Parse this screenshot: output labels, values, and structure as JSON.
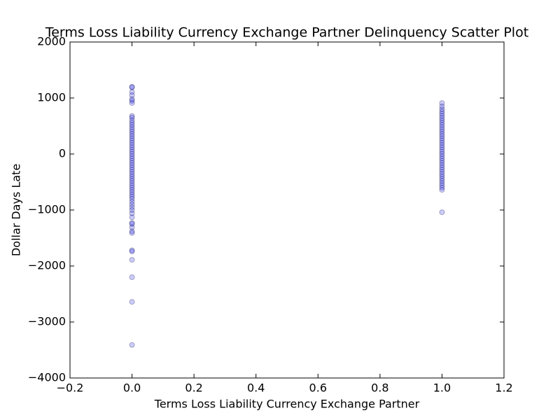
{
  "chart_data": {
    "type": "scatter",
    "title": "Terms Loss Liability Currency Exchange Partner Delinquency Scatter Plot",
    "x_label": "Terms Loss Liability Currency Exchange Partner",
    "y_label": "Dollar Days Late",
    "color": "#0000ff",
    "xlim": [
      -0.2,
      1.2
    ],
    "ylim": [
      -4000,
      2000
    ],
    "xticks": [
      {
        "value": -0.2,
        "label": "−0.2"
      },
      {
        "value": 0,
        "label": "0.0"
      },
      0.2,
      0.4,
      0.6,
      0.8,
      {
        "value": 1,
        "label": "1.0"
      },
      1.2
    ],
    "yticks": [
      {
        "value": -4000,
        "label": "−4000"
      },
      {
        "value": -3000,
        "label": "−3000"
      },
      {
        "value": -2000,
        "label": "−2000"
      },
      {
        "value": -1000,
        "label": "−1000"
      },
      0,
      1000,
      2000
    ],
    "grid": false,
    "x": [
      0,
      0,
      0,
      0,
      0,
      0,
      0,
      0,
      0,
      0,
      0,
      0,
      0,
      0,
      0,
      0,
      0,
      0,
      0,
      0,
      0,
      0,
      0,
      0,
      0,
      0,
      0,
      0,
      0,
      0,
      0,
      0,
      0,
      0,
      0,
      0,
      0,
      0,
      0,
      0,
      0,
      0,
      0,
      0,
      0,
      0,
      0,
      0,
      0,
      0,
      0,
      0,
      0,
      0,
      0,
      0,
      0,
      0,
      0,
      0,
      0,
      0,
      1,
      1,
      1,
      1,
      1,
      1,
      1,
      1,
      1,
      1,
      1,
      1,
      1,
      1,
      1,
      1,
      1,
      1,
      1,
      1,
      1,
      1,
      1,
      1,
      1,
      1,
      1,
      1,
      1,
      1,
      1,
      1,
      1,
      1,
      1,
      1,
      1,
      1,
      1,
      1
    ],
    "values": [
      1200,
      1190,
      1110,
      1050,
      980,
      950,
      910,
      680,
      650,
      600,
      560,
      520,
      480,
      440,
      400,
      360,
      320,
      280,
      240,
      200,
      160,
      120,
      80,
      40,
      0,
      -40,
      -80,
      -120,
      -160,
      -200,
      -240,
      -280,
      -320,
      -360,
      -400,
      -440,
      -480,
      -520,
      -560,
      -600,
      -640,
      -680,
      -720,
      -760,
      -800,
      -850,
      -900,
      -950,
      -1000,
      -1060,
      -1130,
      -1230,
      -1250,
      -1310,
      -1380,
      -1410,
      -1720,
      -1740,
      -1890,
      -2200,
      -2640,
      -3410,
      910,
      850,
      800,
      760,
      720,
      680,
      640,
      600,
      560,
      520,
      480,
      440,
      400,
      360,
      320,
      280,
      240,
      200,
      160,
      120,
      80,
      40,
      0,
      -40,
      -80,
      -120,
      -160,
      -200,
      -240,
      -280,
      -320,
      -360,
      -400,
      -440,
      -480,
      -520,
      -560,
      -600,
      -640,
      -1040
    ]
  }
}
